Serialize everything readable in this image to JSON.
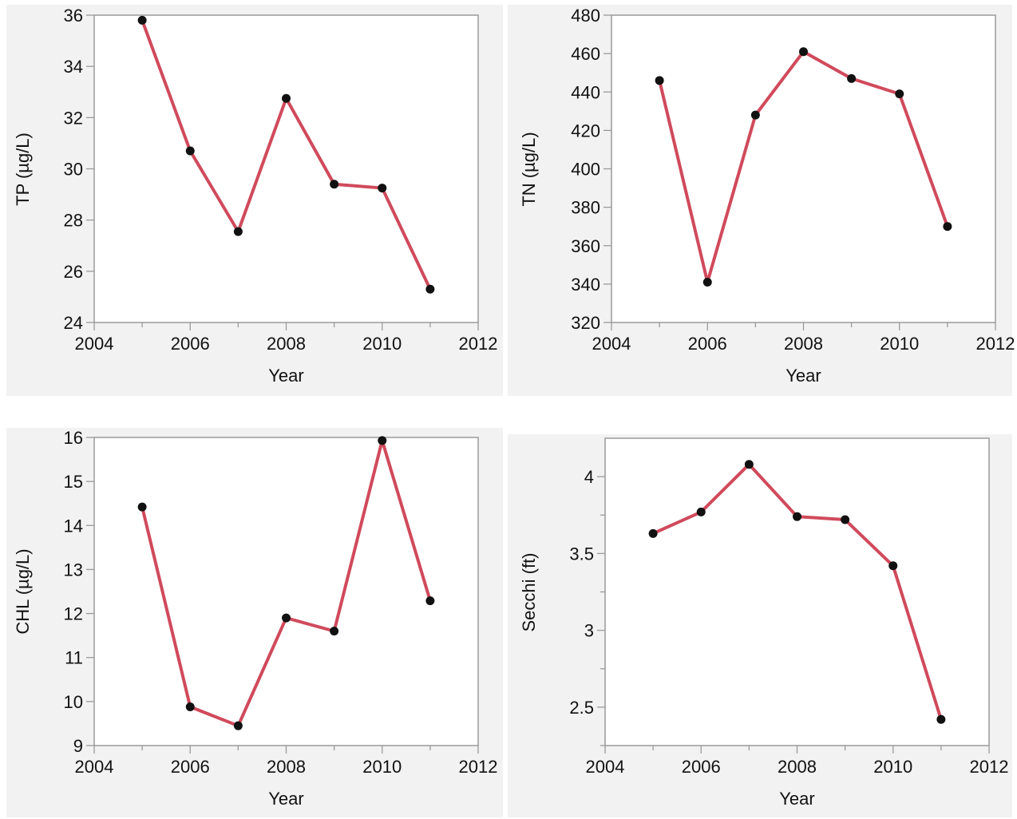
{
  "chart_data": [
    {
      "type": "line",
      "xlabel": "Year",
      "ylabel": "TP (µg/L)",
      "xlim": [
        2004,
        2012
      ],
      "ylim": [
        24,
        36
      ],
      "xticks": [
        "2004",
        "2006",
        "2008",
        "2010",
        "2012"
      ],
      "yticks": [
        "24",
        "26",
        "28",
        "30",
        "32",
        "34",
        "36"
      ],
      "x": [
        2005,
        2006,
        2007,
        2008,
        2009,
        2010,
        2011
      ],
      "values": [
        35.8,
        30.7,
        27.55,
        32.75,
        29.4,
        29.25,
        25.3
      ],
      "line_color": "#d04a5c",
      "marker_color": "#111111"
    },
    {
      "type": "line",
      "xlabel": "Year",
      "ylabel": "TN (µg/L)",
      "xlim": [
        2004,
        2012
      ],
      "ylim": [
        320,
        480
      ],
      "xticks": [
        "2004",
        "2006",
        "2008",
        "2010",
        "2012"
      ],
      "yticks": [
        "320",
        "340",
        "360",
        "380",
        "400",
        "420",
        "440",
        "460",
        "480"
      ],
      "x": [
        2005,
        2006,
        2007,
        2008,
        2009,
        2010,
        2011
      ],
      "values": [
        446,
        341,
        428,
        461,
        447,
        439,
        370
      ],
      "line_color": "#d04a5c",
      "marker_color": "#111111"
    },
    {
      "type": "line",
      "xlabel": "Year",
      "ylabel": "CHL (µg/L)",
      "xlim": [
        2004,
        2012
      ],
      "ylim": [
        9,
        16
      ],
      "xticks": [
        "2004",
        "2006",
        "2008",
        "2010",
        "2012"
      ],
      "yticks": [
        "9",
        "10",
        "11",
        "12",
        "13",
        "14",
        "15",
        "16"
      ],
      "x": [
        2005,
        2006,
        2007,
        2008,
        2009,
        2010,
        2011
      ],
      "values": [
        14.42,
        9.88,
        9.45,
        11.9,
        11.6,
        15.93,
        12.29
      ],
      "line_color": "#d04a5c",
      "marker_color": "#111111"
    },
    {
      "type": "line",
      "xlabel": "Year",
      "ylabel": "Secchi (ft)",
      "xlim": [
        2004,
        2012
      ],
      "ylim": [
        2.25,
        4.25
      ],
      "xticks": [
        "2004",
        "2006",
        "2008",
        "2010",
        "2012"
      ],
      "yticks": [
        "2.5",
        "3",
        "3.5",
        "4"
      ],
      "yminor": [
        2.25,
        2.75,
        3.25,
        3.75
      ],
      "x": [
        2005,
        2006,
        2007,
        2008,
        2009,
        2010,
        2011
      ],
      "values": [
        3.63,
        3.77,
        4.08,
        3.74,
        3.72,
        3.42,
        2.42
      ],
      "line_color": "#d04a5c",
      "marker_color": "#111111"
    }
  ]
}
